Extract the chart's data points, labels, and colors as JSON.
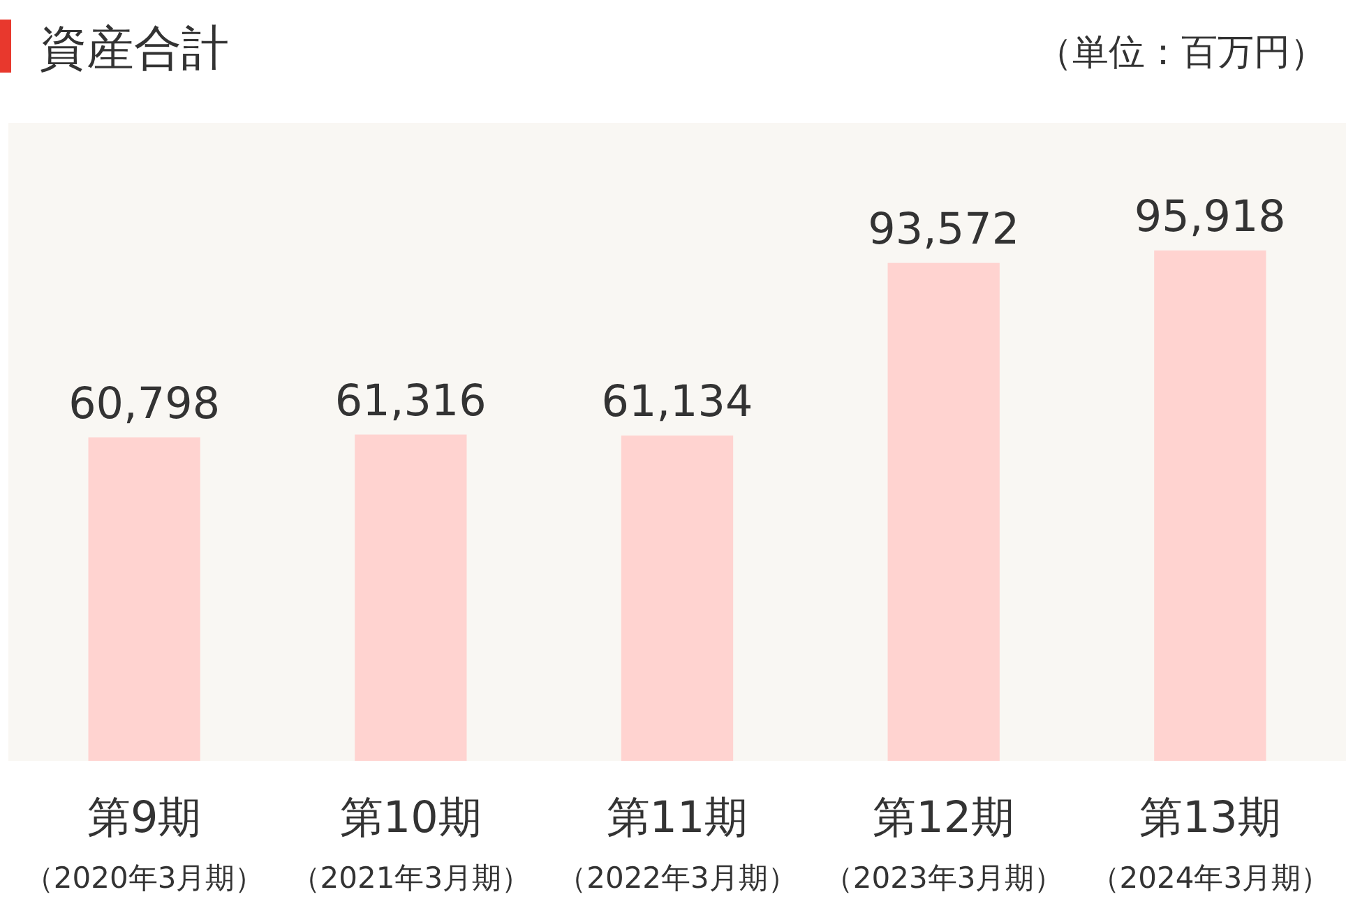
{
  "chart_data": {
    "type": "bar",
    "title": "資産合計",
    "annotations": [
      "（単位：百万円）"
    ],
    "categories": [
      "第9期（2020年3月期）",
      "第10期（2021年3月期）",
      "第11期（2022年3月期）",
      "第12期（2023年3月期）",
      "第13期（2024年3月期）"
    ],
    "values": [
      60798,
      61316,
      61134,
      93572,
      95918
    ],
    "value_labels": [
      "60,798",
      "61,316",
      "61,134",
      "93,572",
      "95,918"
    ],
    "color": "#ffd3d0"
  }
}
